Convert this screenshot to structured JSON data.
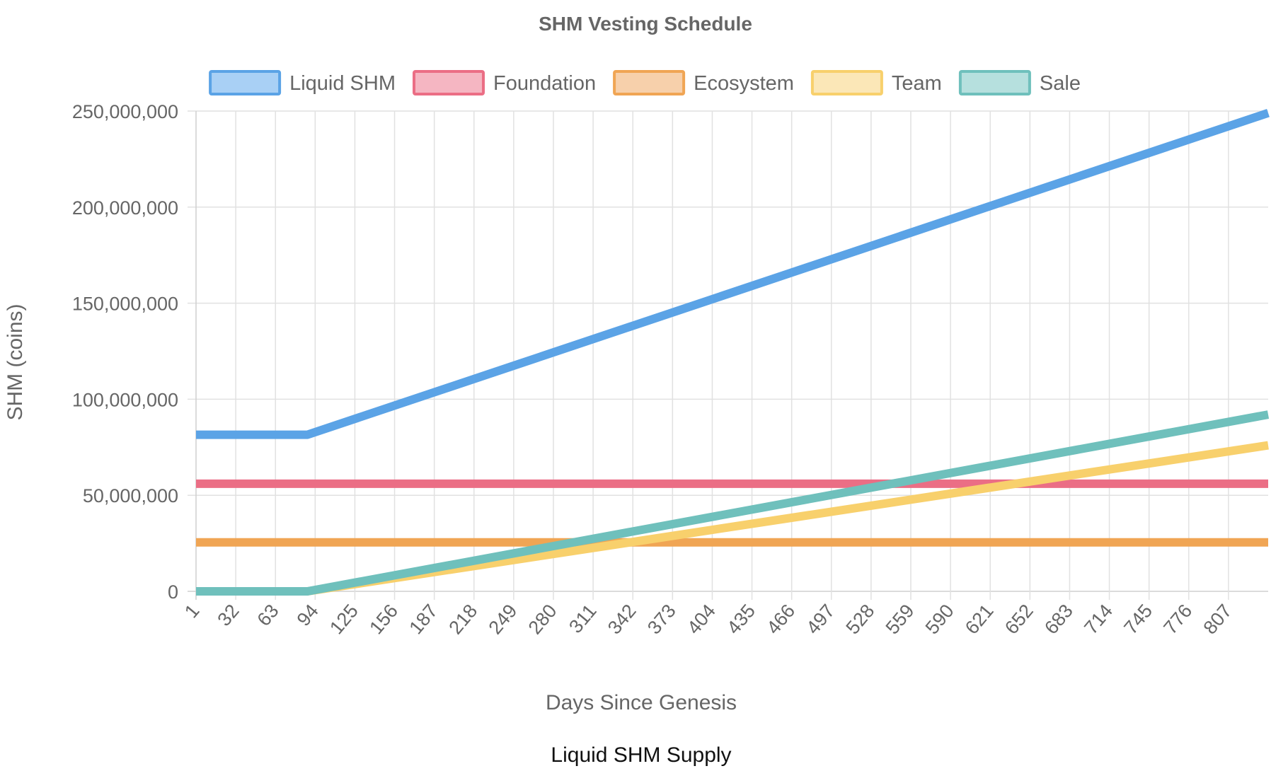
{
  "caption": "Liquid SHM Supply",
  "chart_data": {
    "type": "line",
    "title": "SHM Vesting Schedule",
    "xlabel": "Days Since Genesis",
    "ylabel": "SHM (coins)",
    "x_tick_labels": [
      "1",
      "32",
      "63",
      "94",
      "125",
      "156",
      "187",
      "218",
      "249",
      "280",
      "311",
      "342",
      "373",
      "404",
      "435",
      "466",
      "497",
      "528",
      "559",
      "590",
      "621",
      "652",
      "683",
      "714",
      "745",
      "776",
      "807"
    ],
    "y_tick_labels": [
      "0",
      "50,000,000",
      "100,000,000",
      "150,000,000",
      "200,000,000",
      "250,000,000"
    ],
    "xlim": [
      1,
      838
    ],
    "ylim": [
      0,
      250000000
    ],
    "grid": true,
    "legend_position": "top",
    "series": [
      {
        "name": "Liquid SHM",
        "color": "#5ba3e6",
        "fill": "#a9d0f5",
        "points": [
          [
            1,
            81500000
          ],
          [
            88,
            81500000
          ],
          [
            838,
            249000000
          ]
        ]
      },
      {
        "name": "Foundation",
        "color": "#eb6e85",
        "fill": "#f5b6c2",
        "points": [
          [
            1,
            56000000
          ],
          [
            838,
            56000000
          ]
        ]
      },
      {
        "name": "Ecosystem",
        "color": "#f0a554",
        "fill": "#f7d0ab",
        "points": [
          [
            1,
            25500000
          ],
          [
            838,
            25500000
          ]
        ]
      },
      {
        "name": "Team",
        "color": "#f8d06c",
        "fill": "#fbe7b7",
        "points": [
          [
            1,
            0
          ],
          [
            88,
            0
          ],
          [
            838,
            76000000
          ]
        ]
      },
      {
        "name": "Sale",
        "color": "#6fc0bc",
        "fill": "#b6e0de",
        "points": [
          [
            1,
            0
          ],
          [
            88,
            0
          ],
          [
            838,
            92000000
          ]
        ]
      }
    ]
  }
}
